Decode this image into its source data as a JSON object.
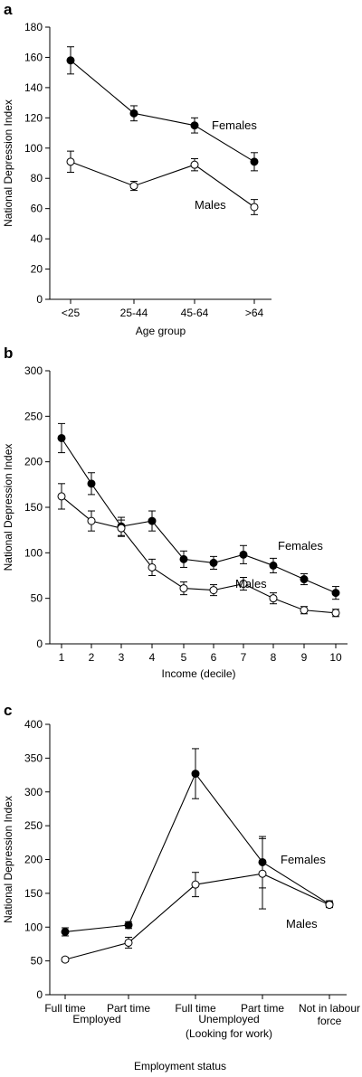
{
  "chart_data": [
    {
      "panel": "a",
      "type": "line",
      "xlabel": "Age group",
      "ylabel": "National Depression Index",
      "ylim": [
        0,
        180
      ],
      "yticks": [
        0,
        20,
        40,
        60,
        80,
        100,
        120,
        140,
        160,
        180
      ],
      "categories": [
        "<25",
        "25-44",
        "45-64",
        ">64"
      ],
      "series": [
        {
          "name": "Females",
          "marker": "filled",
          "values": [
            158,
            123,
            115,
            91
          ],
          "err": [
            9,
            5,
            5,
            6
          ]
        },
        {
          "name": "Males",
          "marker": "open",
          "values": [
            91,
            75,
            89,
            61
          ],
          "err": [
            7,
            3,
            4,
            5
          ]
        }
      ]
    },
    {
      "panel": "b",
      "type": "line",
      "xlabel": "Income (decile)",
      "ylabel": "National Depression Index",
      "ylim": [
        0,
        300
      ],
      "yticks": [
        0,
        50,
        100,
        150,
        200,
        250,
        300
      ],
      "categories": [
        "1",
        "2",
        "3",
        "4",
        "5",
        "6",
        "7",
        "8",
        "9",
        "10"
      ],
      "series": [
        {
          "name": "Females",
          "marker": "filled",
          "values": [
            226,
            176,
            129,
            135,
            93,
            89,
            98,
            86,
            71,
            56
          ],
          "err": [
            16,
            12,
            10,
            11,
            9,
            7,
            10,
            8,
            6,
            7
          ]
        },
        {
          "name": "Males",
          "marker": "open",
          "values": [
            162,
            135,
            127,
            84,
            61,
            59,
            66,
            50,
            37,
            34
          ],
          "err": [
            14,
            11,
            9,
            9,
            7,
            6,
            7,
            6,
            4,
            4
          ]
        }
      ]
    },
    {
      "panel": "c",
      "type": "line",
      "xlabel": "Employment status",
      "ylabel": "National Depression Index",
      "ylim": [
        0,
        400
      ],
      "yticks": [
        0,
        50,
        100,
        150,
        200,
        250,
        300,
        350,
        400
      ],
      "categories": [
        "Full time",
        "Part time",
        "Full time",
        "Part time",
        "Not in labour force"
      ],
      "category_groups": [
        {
          "label": "Employed",
          "from": 0,
          "to": 1
        },
        {
          "label": "Unemployed",
          "sublabel": "(Looking for work)",
          "from": 2,
          "to": 3
        }
      ],
      "series": [
        {
          "name": "Females",
          "marker": "filled",
          "values": [
            93,
            103,
            327,
            196,
            134
          ],
          "err": [
            6,
            5,
            37,
            38,
            5
          ]
        },
        {
          "name": "Males",
          "marker": "open",
          "values": [
            52,
            77,
            163,
            179,
            133
          ],
          "err": [
            3,
            8,
            18,
            52,
            4
          ]
        }
      ]
    }
  ]
}
